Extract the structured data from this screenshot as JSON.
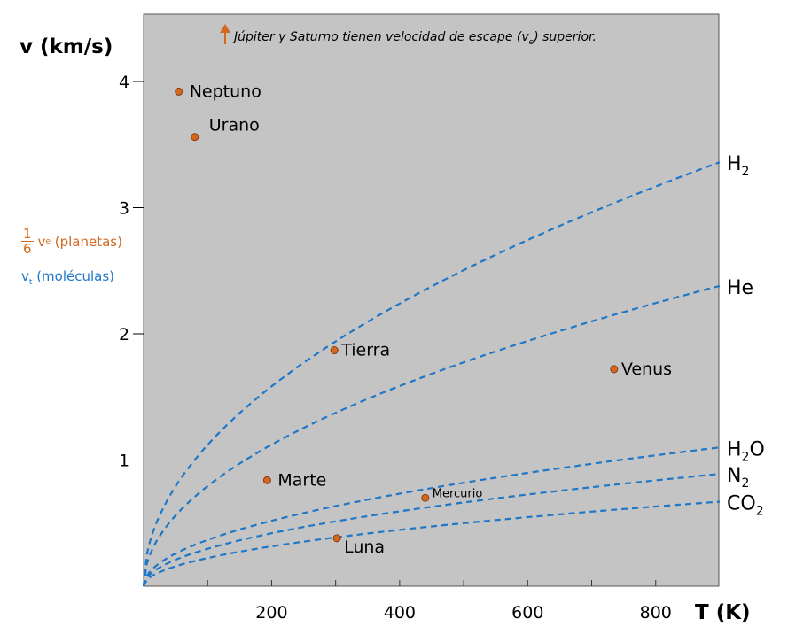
{
  "chart_data": {
    "type": "scatter",
    "title": "",
    "xlabel": "T (K)",
    "ylabel": "v (km/s)",
    "xlim": [
      0,
      900
    ],
    "ylim": [
      0,
      4.5
    ],
    "x_ticks": [
      200,
      400,
      600,
      800
    ],
    "x_minor_ticks": [
      100,
      300,
      500,
      700
    ],
    "y_ticks": [
      1,
      2,
      3,
      4
    ],
    "grid": false,
    "background": "#c4c4c4",
    "annotation": {
      "text": "Júpiter y Saturno tienen velocidad de escape (v",
      "sub": "e",
      "text_after": ") superior."
    },
    "legend": {
      "ve_frac_num": "1",
      "ve_frac_den": "6",
      "ve_symbol": "v",
      "ve_sub": "e",
      "ve_text": " (planetas)",
      "vt_symbol": "v",
      "vt_sub": "t",
      "vt_text": " (moléculas)"
    },
    "planets": [
      {
        "name": "Neptuno",
        "T": 55,
        "v": 3.92
      },
      {
        "name": "Urano",
        "T": 80,
        "v": 3.56
      },
      {
        "name": "Tierra",
        "T": 298,
        "v": 1.87
      },
      {
        "name": "Venus",
        "T": 735,
        "v": 1.72
      },
      {
        "name": "Marte",
        "T": 193,
        "v": 0.84
      },
      {
        "name": "Mercurio",
        "T": 440,
        "v": 0.7
      },
      {
        "name": "Luna",
        "T": 302,
        "v": 0.38
      }
    ],
    "curves": [
      {
        "name": "H",
        "sub": "2",
        "after": "",
        "v_at_900": 3.36
      },
      {
        "name": "He",
        "sub": "",
        "after": "",
        "v_at_900": 2.38
      },
      {
        "name": "H",
        "sub": "2",
        "after": "O",
        "v_at_900": 1.1
      },
      {
        "name": "N",
        "sub": "2",
        "after": "",
        "v_at_900": 0.89
      },
      {
        "name": "CO",
        "sub": "2",
        "after": "",
        "v_at_900": 0.67
      }
    ],
    "colors": {
      "planet_fill": "#d2691e",
      "planet_stroke": "#8b3a0e",
      "curve": "#1f77c8",
      "arrow": "#d2691e"
    }
  }
}
